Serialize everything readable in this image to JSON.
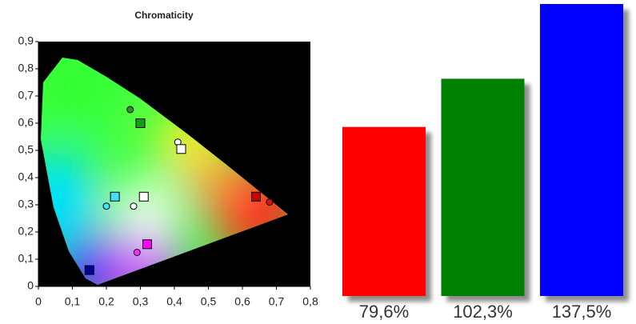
{
  "chart_data": [
    {
      "type": "scatter",
      "title": "Chromaticity",
      "xlim": [
        0,
        0.8
      ],
      "ylim": [
        0,
        0.9
      ],
      "xticks": [
        0,
        {
          "value": 0.1,
          "label": "0,1"
        },
        {
          "value": 0.2,
          "label": "0,2"
        },
        {
          "value": 0.3,
          "label": "0,3"
        },
        {
          "value": 0.4,
          "label": "0,4"
        },
        {
          "value": 0.5,
          "label": "0,5"
        },
        {
          "value": 0.6,
          "label": "0,6"
        },
        {
          "value": 0.7,
          "label": "0,7"
        },
        {
          "value": 0.8,
          "label": "0,8"
        }
      ],
      "yticks": [
        0,
        {
          "value": 0.1,
          "label": "0,1"
        },
        {
          "value": 0.2,
          "label": "0,2"
        },
        {
          "value": 0.3,
          "label": "0,3"
        },
        {
          "value": 0.4,
          "label": "0,4"
        },
        {
          "value": 0.5,
          "label": "0,5"
        },
        {
          "value": 0.6,
          "label": "0,6"
        },
        {
          "value": 0.7,
          "label": "0,7"
        },
        {
          "value": 0.8,
          "label": "0,8"
        },
        {
          "value": 0.9,
          "label": "0,9"
        }
      ],
      "series": [
        {
          "marker": "circle",
          "x": [
            0.27,
            0.41,
            0.2,
            0.28,
            0.68,
            0.29
          ],
          "values": [
            0.65,
            0.53,
            0.295,
            0.295,
            0.31,
            0.125
          ],
          "colors": [
            "#2e8b2e",
            "#ffffff",
            "#40e8ff",
            "#ffffff",
            "#e01010",
            "#ff30ff"
          ]
        },
        {
          "marker": "square",
          "x": [
            0.3,
            0.42,
            0.225,
            0.31,
            0.64,
            0.32,
            0.15
          ],
          "values": [
            0.6,
            0.505,
            0.33,
            0.33,
            0.33,
            0.155,
            0.06
          ],
          "colors": [
            "#10a010",
            "#ffffff",
            "#40e0ff",
            "#ffffff",
            "#d00000",
            "#ff00ff",
            "#0000a0"
          ]
        }
      ]
    },
    {
      "type": "bar",
      "values": [
        79.6,
        102.3,
        137.5
      ],
      "value_labels": [
        "79,6%",
        "102,3%",
        "137,5%"
      ],
      "colors": [
        "#ff0000",
        "#008000",
        "#0000ff"
      ]
    }
  ]
}
